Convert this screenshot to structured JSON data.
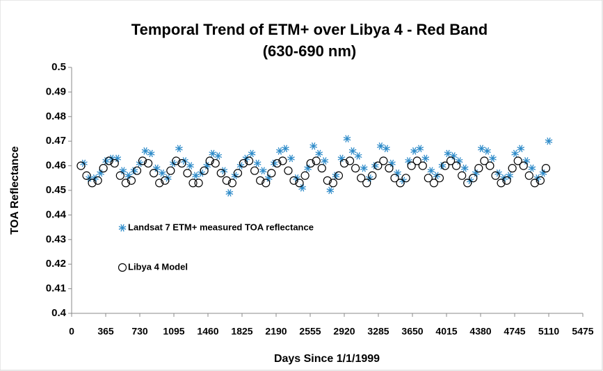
{
  "chart_data": {
    "type": "scatter",
    "title": "Temporal Trend of ETM+ over Libya 4 - Red Band",
    "subtitle": "(630-690 nm)",
    "x_label": "Days Since 1/1/1999",
    "y_label": "TOA Reflectance",
    "xlim": [
      0,
      5475
    ],
    "xticks": [
      0,
      365,
      730,
      1095,
      1460,
      1825,
      2190,
      2555,
      2920,
      3285,
      3650,
      4015,
      4380,
      4745,
      5110,
      5475
    ],
    "ylim": [
      0.4,
      0.5
    ],
    "yticks": [
      0.4,
      0.41,
      0.42,
      0.43,
      0.44,
      0.45,
      0.46,
      0.47,
      0.48,
      0.49,
      0.5
    ],
    "grid": false,
    "series": [
      {
        "name": "Landsat 7 ETM+ measured TOA reflectance",
        "color": "#2e8bc9",
        "marker": "asterisk",
        "x": [
          130,
          190,
          250,
          310,
          370,
          430,
          490,
          550,
          610,
          670,
          730,
          790,
          850,
          910,
          970,
          1030,
          1090,
          1150,
          1210,
          1270,
          1330,
          1390,
          1450,
          1510,
          1570,
          1630,
          1690,
          1750,
          1810,
          1870,
          1930,
          1990,
          2050,
          2110,
          2170,
          2230,
          2290,
          2350,
          2410,
          2470,
          2530,
          2590,
          2650,
          2710,
          2770,
          2830,
          2890,
          2950,
          3010,
          3070,
          3130,
          3190,
          3250,
          3310,
          3370,
          3430,
          3490,
          3550,
          3610,
          3670,
          3730,
          3790,
          3850,
          3910,
          3970,
          4030,
          4090,
          4150,
          4210,
          4270,
          4330,
          4390,
          4450,
          4510,
          4570,
          4630,
          4690,
          4750,
          4810,
          4870,
          4930,
          4990,
          5050,
          5110
        ],
        "values": [
          0.461,
          0.455,
          0.455,
          0.457,
          0.462,
          0.463,
          0.463,
          0.458,
          0.456,
          0.458,
          0.461,
          0.466,
          0.465,
          0.459,
          0.457,
          0.455,
          0.461,
          0.467,
          0.462,
          0.46,
          0.456,
          0.457,
          0.46,
          0.465,
          0.464,
          0.458,
          0.449,
          0.456,
          0.46,
          0.463,
          0.465,
          0.461,
          0.458,
          0.455,
          0.461,
          0.466,
          0.467,
          0.463,
          0.455,
          0.451,
          0.459,
          0.468,
          0.465,
          0.462,
          0.45,
          0.456,
          0.463,
          0.471,
          0.466,
          0.464,
          0.459,
          0.455,
          0.46,
          0.468,
          0.467,
          0.461,
          0.457,
          0.454,
          0.462,
          0.466,
          0.467,
          0.463,
          0.458,
          0.456,
          0.46,
          0.465,
          0.464,
          0.462,
          0.459,
          0.454,
          0.457,
          0.467,
          0.466,
          0.463,
          0.457,
          0.455,
          0.456,
          0.465,
          0.467,
          0.462,
          0.459,
          0.455,
          0.457,
          0.47
        ]
      },
      {
        "name": "Libya 4 Model",
        "color": "#000000",
        "marker": "circle",
        "x": [
          100,
          160,
          220,
          280,
          340,
          400,
          460,
          520,
          580,
          640,
          700,
          760,
          820,
          880,
          940,
          1000,
          1060,
          1120,
          1180,
          1240,
          1300,
          1360,
          1420,
          1480,
          1540,
          1600,
          1660,
          1720,
          1780,
          1840,
          1900,
          1960,
          2020,
          2080,
          2140,
          2200,
          2260,
          2320,
          2380,
          2440,
          2500,
          2560,
          2620,
          2680,
          2740,
          2800,
          2860,
          2920,
          2980,
          3040,
          3100,
          3160,
          3220,
          3280,
          3340,
          3400,
          3460,
          3520,
          3580,
          3640,
          3700,
          3760,
          3820,
          3880,
          3940,
          4000,
          4060,
          4120,
          4180,
          4240,
          4300,
          4360,
          4420,
          4480,
          4540,
          4600,
          4660,
          4720,
          4780,
          4840,
          4900,
          4960,
          5020,
          5080
        ],
        "values": [
          0.46,
          0.456,
          0.453,
          0.454,
          0.459,
          0.462,
          0.461,
          0.456,
          0.453,
          0.454,
          0.458,
          0.462,
          0.461,
          0.457,
          0.453,
          0.454,
          0.458,
          0.462,
          0.461,
          0.457,
          0.453,
          0.453,
          0.458,
          0.462,
          0.461,
          0.457,
          0.454,
          0.453,
          0.457,
          0.461,
          0.462,
          0.458,
          0.454,
          0.453,
          0.457,
          0.461,
          0.462,
          0.458,
          0.454,
          0.453,
          0.456,
          0.461,
          0.462,
          0.459,
          0.454,
          0.453,
          0.456,
          0.461,
          0.462,
          0.459,
          0.455,
          0.453,
          0.456,
          0.46,
          0.462,
          0.459,
          0.455,
          0.453,
          0.455,
          0.46,
          0.462,
          0.46,
          0.455,
          0.453,
          0.455,
          0.46,
          0.462,
          0.46,
          0.456,
          0.453,
          0.455,
          0.459,
          0.462,
          0.46,
          0.456,
          0.453,
          0.454,
          0.459,
          0.462,
          0.46,
          0.456,
          0.453,
          0.454,
          0.459
        ]
      }
    ]
  }
}
